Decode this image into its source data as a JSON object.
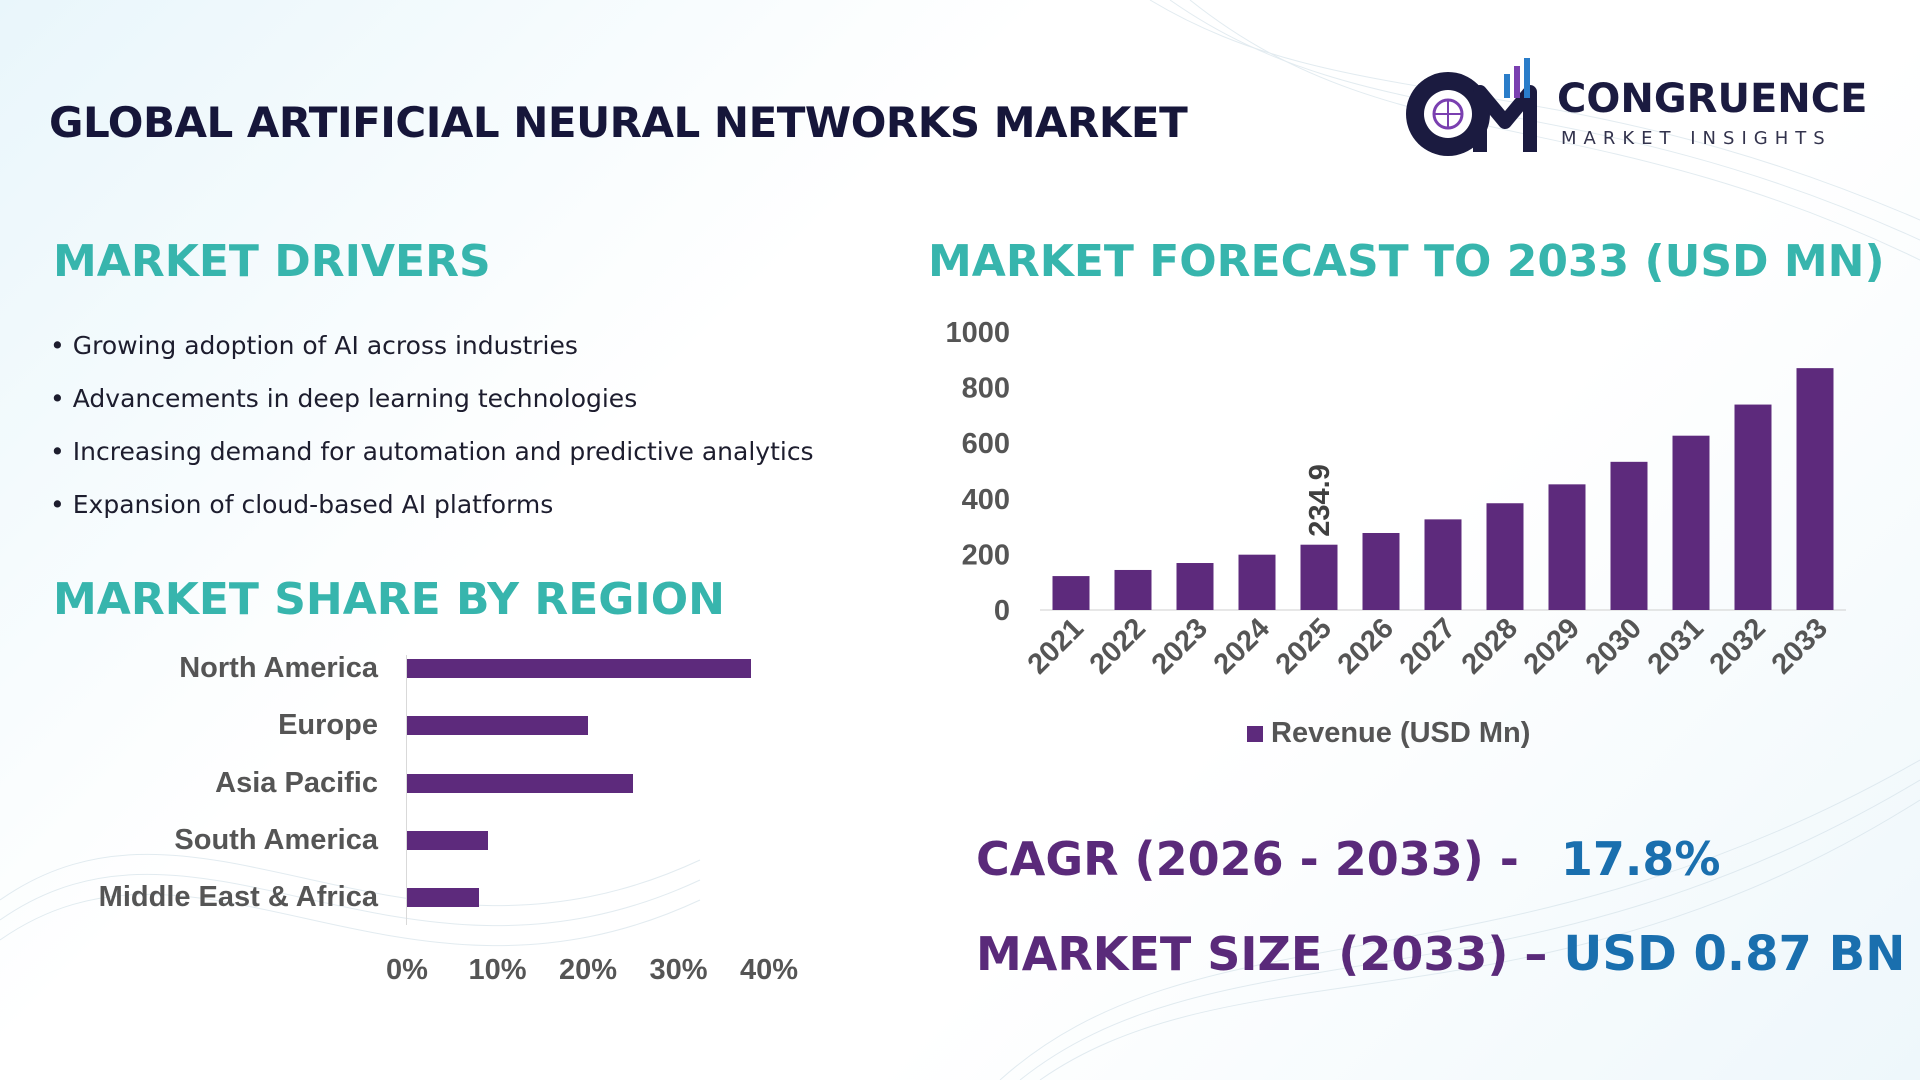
{
  "header": {
    "title": "GLOBAL ARTIFICIAL NEURAL NETWORKS MARKET",
    "logo_name": "CONGRUENCE",
    "logo_sub": "MARKET INSIGHTS",
    "logo_mark": "CM"
  },
  "drivers": {
    "title": "MARKET DRIVERS",
    "bullet": "•",
    "items": [
      "Growing adoption of AI across industries",
      "Advancements in deep learning technologies",
      "Increasing demand for automation and predictive analytics",
      "Expansion of cloud-based AI platforms"
    ]
  },
  "region": {
    "title": "MARKET SHARE BY REGION"
  },
  "forecast": {
    "title": "MARKET FORECAST TO 2033 (USD MN)"
  },
  "stats": {
    "cagr_label": "CAGR (2026 - 2033) -",
    "cagr_value": "17.8%",
    "size_label": "MARKET SIZE (2033) –",
    "size_value": "USD 0.87 BN"
  },
  "colors": {
    "bar": "#5d2a7c",
    "heading": "#37b5ad",
    "stat_label": "#5a2a7a",
    "stat_value": "#1a6fae",
    "title": "#16163a"
  },
  "chart_data": [
    {
      "type": "bar",
      "orientation": "vertical",
      "categories": [
        "2021",
        "2022",
        "2023",
        "2024",
        "2025",
        "2026",
        "2027",
        "2028",
        "2029",
        "2030",
        "2031",
        "2032",
        "2033"
      ],
      "series": [
        {
          "name": "Revenue (USD Mn)",
          "values": [
            122,
            144,
            169,
            199,
            234.9,
            277,
            326,
            384,
            452,
            533,
            627,
            739,
            870
          ]
        }
      ],
      "data_labels": [
        {
          "category": "2025",
          "text": "234.9"
        }
      ],
      "yticks": [
        "0",
        "200",
        "400",
        "600",
        "800",
        "1000"
      ],
      "ylim": [
        0,
        1000
      ],
      "legend_position": "bottom",
      "grid": false
    },
    {
      "type": "bar",
      "orientation": "horizontal",
      "categories": [
        "North America",
        "Europe",
        "Asia Pacific",
        "South America",
        "Middle East & Africa"
      ],
      "values": [
        38,
        20,
        25,
        9,
        8
      ],
      "xticks": [
        "0%",
        "10%",
        "20%",
        "30%",
        "40%"
      ],
      "xlim": [
        0,
        40
      ],
      "grid": false
    }
  ]
}
